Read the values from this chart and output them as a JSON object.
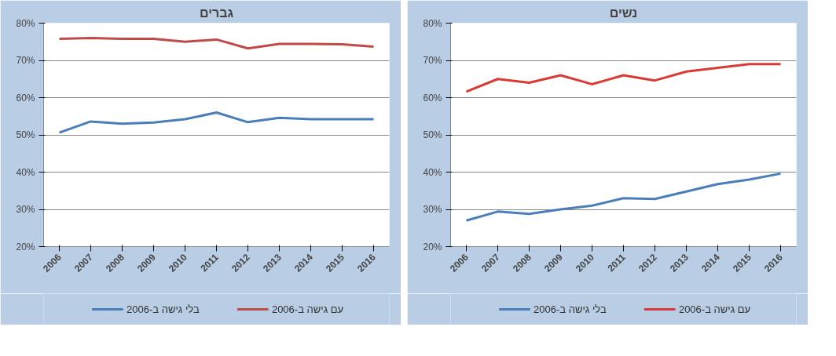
{
  "chart_data": [
    {
      "type": "line",
      "title": "גברים",
      "categories": [
        "2006",
        "2007",
        "2008",
        "2009",
        "2010",
        "2011",
        "2012",
        "2013",
        "2014",
        "2015",
        "2016"
      ],
      "ylim": [
        20,
        80
      ],
      "yticks": [
        {
          "value": 20,
          "label": "20%"
        },
        {
          "value": 30,
          "label": "30%"
        },
        {
          "value": 40,
          "label": "40%"
        },
        {
          "value": 50,
          "label": "50%"
        },
        {
          "value": 60,
          "label": "60%"
        },
        {
          "value": 70,
          "label": "70%"
        },
        {
          "value": 80,
          "label": "80%"
        }
      ],
      "grid": "y",
      "legend": "bottom",
      "series": [
        {
          "name": "בלי גישה ב-2006",
          "color": "#4a7ebb",
          "values": [
            50.6,
            53.6,
            53,
            53.3,
            54.2,
            56,
            53.4,
            54.6,
            54.2,
            54.2,
            54.2
          ]
        },
        {
          "name": "עם גישה ב-2006",
          "color": "#be4b48",
          "values": [
            75.8,
            76,
            75.8,
            75.8,
            75,
            75.6,
            73.2,
            74.4,
            74.4,
            74.3,
            73.7
          ]
        }
      ]
    },
    {
      "type": "line",
      "title": "נשים",
      "categories": [
        "2006",
        "2007",
        "2008",
        "2009",
        "2010",
        "2011",
        "2012",
        "2013",
        "2014",
        "2015",
        "2016"
      ],
      "ylim": [
        20,
        80
      ],
      "yticks": [
        {
          "value": 20,
          "label": "20%"
        },
        {
          "value": 30,
          "label": "30%"
        },
        {
          "value": 40,
          "label": "40%"
        },
        {
          "value": 50,
          "label": "50%"
        },
        {
          "value": 60,
          "label": "60%"
        },
        {
          "value": 70,
          "label": "70%"
        },
        {
          "value": 80,
          "label": "80%"
        }
      ],
      "grid": "y",
      "legend": "bottom",
      "series": [
        {
          "name": "בלי גישה ב-2006",
          "color": "#4a7ebb",
          "values": [
            27,
            29.4,
            28.8,
            30,
            31,
            33,
            32.8,
            34.8,
            36.8,
            38,
            39.6
          ]
        },
        {
          "name": "עם גישה ב-2006",
          "color": "#d93a36",
          "values": [
            61.6,
            65,
            64,
            66,
            63.6,
            66,
            64.6,
            67,
            68,
            69,
            69
          ]
        }
      ]
    }
  ]
}
